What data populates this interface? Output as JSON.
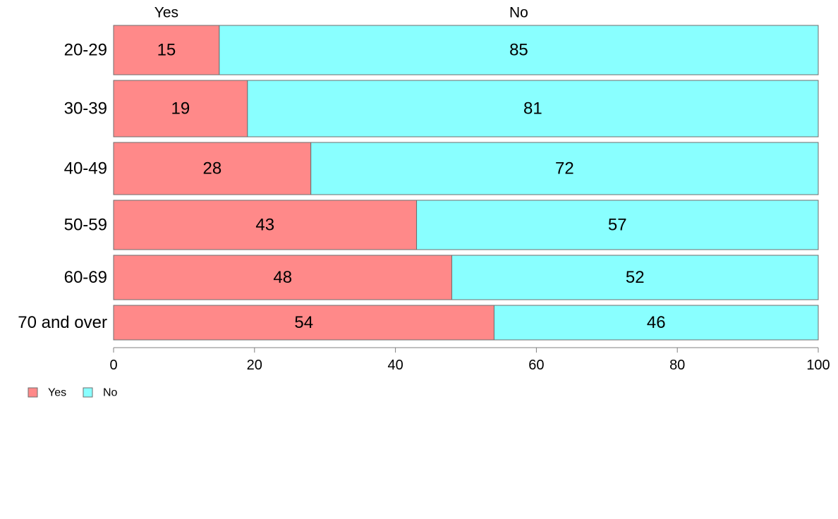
{
  "chart_data": {
    "type": "bar",
    "orientation": "horizontal",
    "stacked": true,
    "categories": [
      "20-29",
      "30-39",
      "40-49",
      "50-59",
      "60-69",
      "70 and over"
    ],
    "series": [
      {
        "name": "Yes",
        "values": [
          15,
          19,
          28,
          43,
          48,
          54
        ],
        "color": "#ff8989"
      },
      {
        "name": "No",
        "values": [
          85,
          81,
          72,
          57,
          52,
          46
        ],
        "color": "#89ffff"
      }
    ],
    "series_top_labels": [
      "Yes",
      "No"
    ],
    "xlim": [
      0,
      100
    ],
    "xticks": [
      "0",
      "20",
      "40",
      "60",
      "80",
      "100"
    ],
    "grid": false,
    "legend": {
      "position": "bottom-left",
      "entries": [
        "Yes",
        "No"
      ]
    },
    "data_labels": true
  }
}
